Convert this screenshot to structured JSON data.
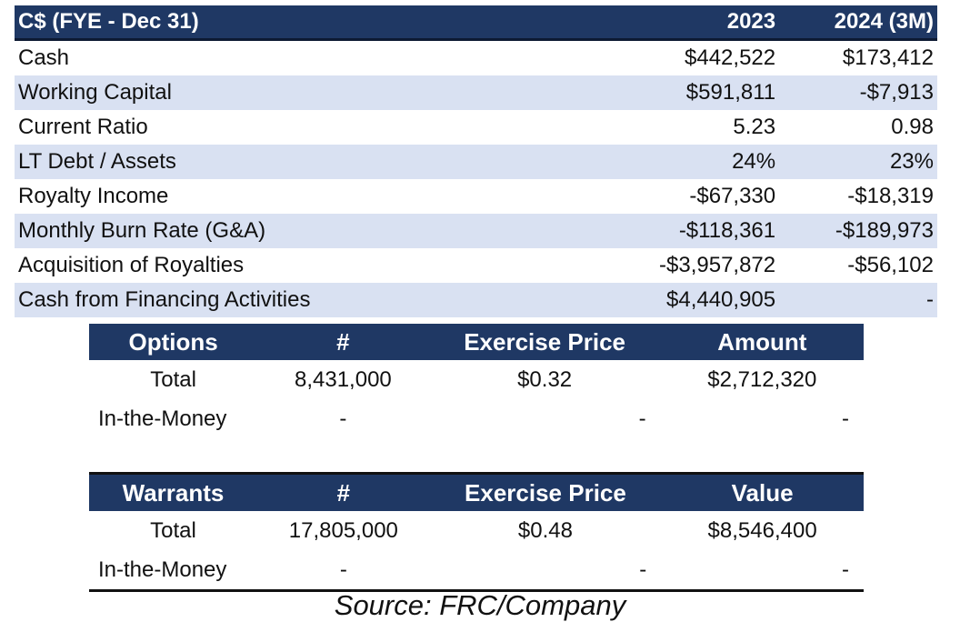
{
  "financials": {
    "header": {
      "label": "C$ (FYE - Dec 31)",
      "col1": "2023",
      "col2": "2024 (3M)"
    },
    "rows": [
      {
        "label": "Cash",
        "v1": "$442,522",
        "v2": "$173,412"
      },
      {
        "label": "Working Capital",
        "v1": "$591,811",
        "v2": "-$7,913"
      },
      {
        "label": "Current Ratio",
        "v1": "5.23",
        "v2": "0.98"
      },
      {
        "label": "LT Debt / Assets",
        "v1": "24%",
        "v2": "23%"
      },
      {
        "label": "Royalty Income",
        "v1": "-$67,330",
        "v2": "-$18,319"
      },
      {
        "label": "Monthly Burn Rate (G&A)",
        "v1": "-$118,361",
        "v2": "-$189,973"
      },
      {
        "label": "Acquisition of Royalties",
        "v1": "-$3,957,872",
        "v2": "-$56,102"
      },
      {
        "label": "Cash from Financing Activities",
        "v1": "$4,440,905",
        "v2": "-"
      }
    ]
  },
  "options": {
    "header": [
      "Options",
      "#",
      "Exercise Price",
      "Amount"
    ],
    "rows": [
      [
        "Total",
        "8,431,000",
        "$0.32",
        "$2,712,320"
      ],
      [
        "In-the-Money",
        "-",
        "-",
        "-"
      ]
    ]
  },
  "warrants": {
    "header": [
      "Warrants",
      "#",
      "Exercise Price",
      "Value"
    ],
    "rows": [
      [
        "Total",
        "17,805,000",
        "$0.48",
        "$8,546,400"
      ],
      [
        "In-the-Money",
        "-",
        "-",
        "-"
      ]
    ]
  },
  "source": "Source: FRC/Company",
  "colors": {
    "header_bg": "#1f3864",
    "band_bg": "#d9e1f2"
  }
}
